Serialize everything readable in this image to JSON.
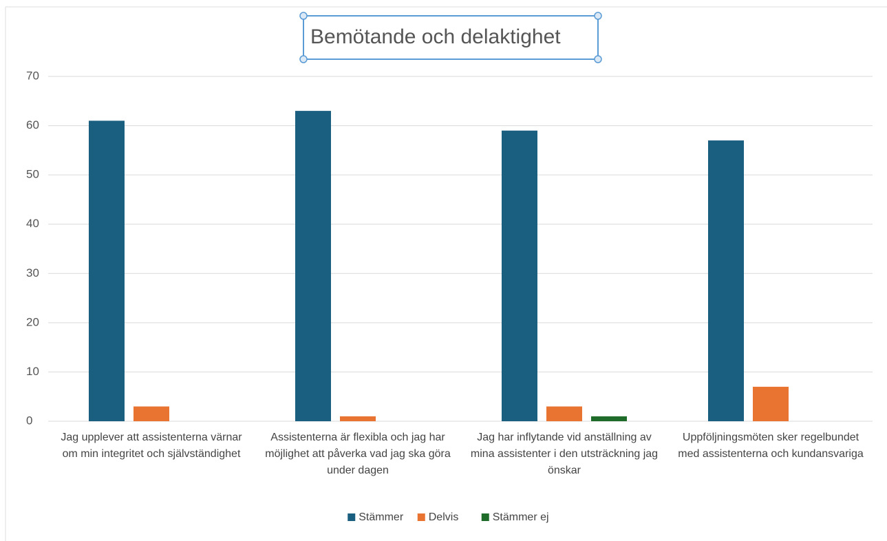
{
  "chart_data": {
    "type": "bar",
    "title": "Bemötande och delaktighet",
    "categories": [
      "Jag upplever att assistenterna värnar om min integritet och självständighet",
      "Assistenterna är flexibla och jag har möjlighet att påverka vad jag ska göra under dagen",
      "Jag har inflytande vid anställning av mina assistenter i den utsträckning jag önskar",
      "Uppföljningsmöten sker regelbundet med assistenterna och kundansvariga"
    ],
    "series": [
      {
        "name": "Stämmer",
        "color": "#1a5e80",
        "values": [
          61,
          63,
          59,
          57
        ]
      },
      {
        "name": "Delvis",
        "color": "#e97432",
        "values": [
          3,
          1,
          3,
          7
        ]
      },
      {
        "name": "Stämmer ej",
        "color": "#1e6b2a",
        "values": [
          0,
          0,
          1,
          0
        ]
      }
    ],
    "ylim": [
      0,
      70
    ],
    "yticks": [
      0,
      10,
      20,
      30,
      40,
      50,
      60,
      70
    ],
    "grid": true,
    "legend": "bottom"
  }
}
